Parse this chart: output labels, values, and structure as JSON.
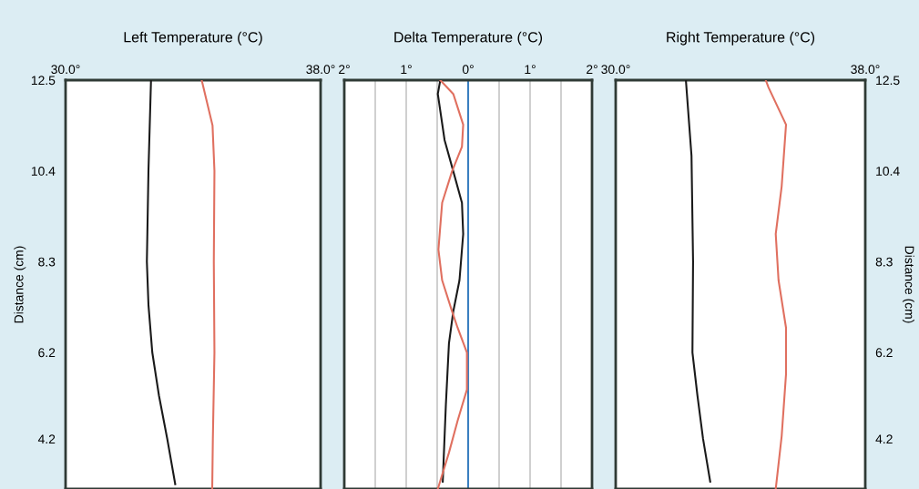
{
  "chart_data": [
    {
      "type": "line",
      "orientation": "horizontal",
      "title": "Left Temperature (°C)",
      "ylabel": "Distance (cm)",
      "xlim": [
        30.0,
        38.0
      ],
      "xticks": [
        {
          "value": 30.0,
          "label": "30.0°"
        },
        {
          "value": 38.0,
          "label": "38.0°"
        }
      ],
      "ylim": [
        3.04,
        12.5
      ],
      "yticks": [
        12.5,
        10.4,
        8.3,
        6.2,
        4.2
      ],
      "grid": false,
      "legend": false,
      "series": [
        {
          "color": "#1a1a1a",
          "values": [
            32.68,
            32.6,
            32.55,
            32.6,
            32.72,
            32.93,
            33.19,
            33.44
          ],
          "x": [
            12.5,
            10.4,
            8.3,
            7.3,
            6.2,
            5.2,
            4.2,
            3.15
          ]
        },
        {
          "color": "#e07060",
          "values": [
            34.27,
            34.61,
            34.67,
            34.65,
            34.67,
            34.62,
            34.6
          ],
          "x": [
            12.5,
            11.45,
            10.4,
            8.3,
            6.2,
            4.2,
            3.04
          ]
        }
      ]
    },
    {
      "type": "line",
      "orientation": "horizontal",
      "title": "Delta Temperature (°C)",
      "xlim": [
        -2,
        2
      ],
      "xticks": [
        {
          "value": -2,
          "label": "2°"
        },
        {
          "value": -1.5,
          "label": null
        },
        {
          "value": -1,
          "label": "1°"
        },
        {
          "value": -0.5,
          "label": null
        },
        {
          "value": 0,
          "label": "0°"
        },
        {
          "value": 0.5,
          "label": null
        },
        {
          "value": 1,
          "label": "1°"
        },
        {
          "value": 1.5,
          "label": null
        },
        {
          "value": 2,
          "label": "2°"
        }
      ],
      "ylim": [
        3.04,
        12.5
      ],
      "tick_labels": "x",
      "grid": "x",
      "legend": false,
      "ref_lines": [
        {
          "axis": "x",
          "value": 0,
          "color": "#3a7fc0"
        }
      ],
      "series": [
        {
          "color": "#1a1a1a",
          "values": [
            -0.45,
            -0.49,
            -0.38,
            -0.24,
            -0.1,
            -0.08,
            -0.14,
            -0.24,
            -0.31,
            -0.36,
            -0.41
          ],
          "x": [
            12.5,
            12.18,
            11.11,
            10.39,
            9.66,
            8.94,
            7.87,
            7.15,
            6.41,
            4.98,
            3.21
          ]
        },
        {
          "color": "#e07060",
          "values": [
            -0.45,
            -0.24,
            -0.08,
            -0.1,
            -0.26,
            -0.42,
            -0.48,
            -0.42,
            -0.26,
            -0.17,
            -0.02,
            -0.02,
            -0.17,
            -0.31,
            -0.49
          ],
          "x": [
            12.5,
            12.18,
            11.47,
            10.96,
            10.39,
            9.66,
            8.58,
            7.87,
            7.15,
            6.77,
            6.2,
            5.34,
            4.62,
            3.88,
            3.04
          ]
        }
      ]
    },
    {
      "type": "line",
      "orientation": "horizontal",
      "title": "Right Temperature (°C)",
      "ylabel": "Distance (cm)",
      "xlim": [
        30.0,
        38.0
      ],
      "xticks": [
        {
          "value": 30.0,
          "label": "30.0°"
        },
        {
          "value": 38.0,
          "label": "38.0°"
        }
      ],
      "ylim": [
        3.04,
        12.5
      ],
      "yticks": [
        12.5,
        10.4,
        8.3,
        6.2,
        4.2
      ],
      "grid": false,
      "legend": false,
      "series": [
        {
          "color": "#1a1a1a",
          "values": [
            32.25,
            32.43,
            32.48,
            32.46,
            32.62,
            32.8,
            33.03
          ],
          "x": [
            12.5,
            10.75,
            8.3,
            6.2,
            5.2,
            4.2,
            3.21
          ]
        },
        {
          "color": "#e07060",
          "values": [
            34.81,
            34.9,
            35.46,
            35.32,
            35.13,
            35.22,
            35.46,
            35.46,
            35.32,
            35.13
          ],
          "x": [
            12.5,
            12.33,
            11.47,
            10.04,
            8.94,
            7.87,
            6.77,
            5.7,
            4.26,
            3.04
          ]
        }
      ]
    }
  ]
}
